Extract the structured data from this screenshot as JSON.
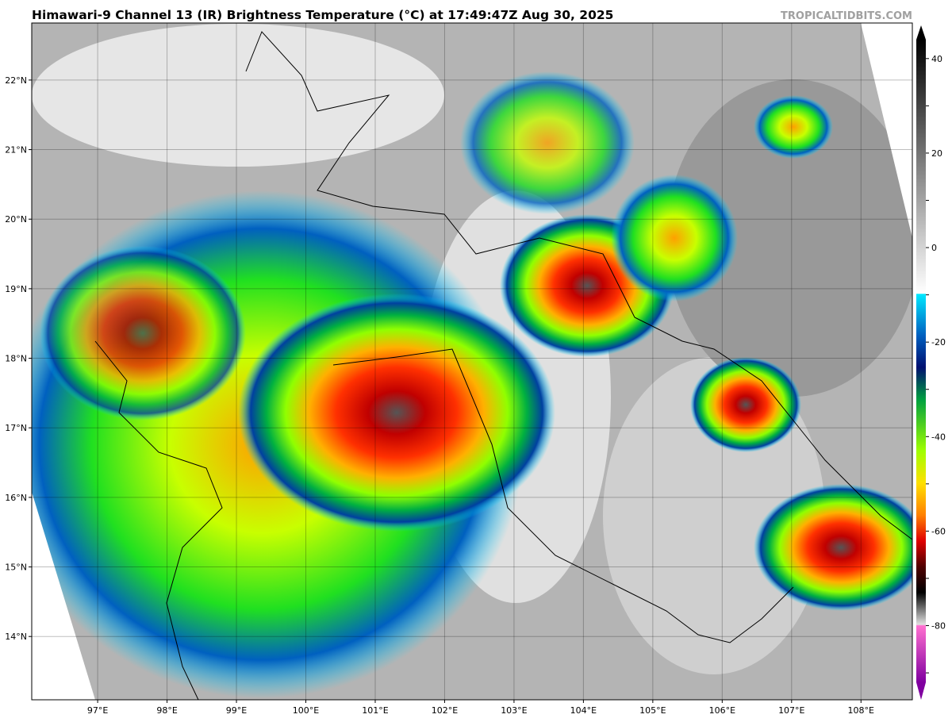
{
  "header": {
    "title": "Himawari-9 Channel 13 (IR) Brightness Temperature (°C) at 17:49:47Z Aug 30, 2025",
    "watermark": "TROPICALTIDBITS.COM"
  },
  "map": {
    "xlim": [
      96.05,
      108.74
    ],
    "ylim": [
      13.09,
      22.82
    ],
    "xticks": [
      {
        "value": 97,
        "label": "97°E"
      },
      {
        "value": 98,
        "label": "98°E"
      },
      {
        "value": 99,
        "label": "99°E"
      },
      {
        "value": 100,
        "label": "100°E"
      },
      {
        "value": 101,
        "label": "101°E"
      },
      {
        "value": 102,
        "label": "102°E"
      },
      {
        "value": 103,
        "label": "103°E"
      },
      {
        "value": 104,
        "label": "104°E"
      },
      {
        "value": 105,
        "label": "105°E"
      },
      {
        "value": 106,
        "label": "106°E"
      },
      {
        "value": 107,
        "label": "107°E"
      },
      {
        "value": 108,
        "label": "108°E"
      }
    ],
    "yticks": [
      {
        "value": 14,
        "label": "14°N"
      },
      {
        "value": 15,
        "label": "15°N"
      },
      {
        "value": 16,
        "label": "16°N"
      },
      {
        "value": 17,
        "label": "17°N"
      },
      {
        "value": 18,
        "label": "18°N"
      },
      {
        "value": 19,
        "label": "19°N"
      },
      {
        "value": 20,
        "label": "20°N"
      },
      {
        "value": 21,
        "label": "21°N"
      },
      {
        "value": 22,
        "label": "22°N"
      }
    ]
  },
  "colorbar": {
    "lim": [
      -92,
      44
    ],
    "ticks": [
      40,
      30,
      20,
      10,
      0,
      -10,
      -20,
      -30,
      -40,
      -50,
      -60,
      -70,
      -80,
      -90
    ]
  }
}
